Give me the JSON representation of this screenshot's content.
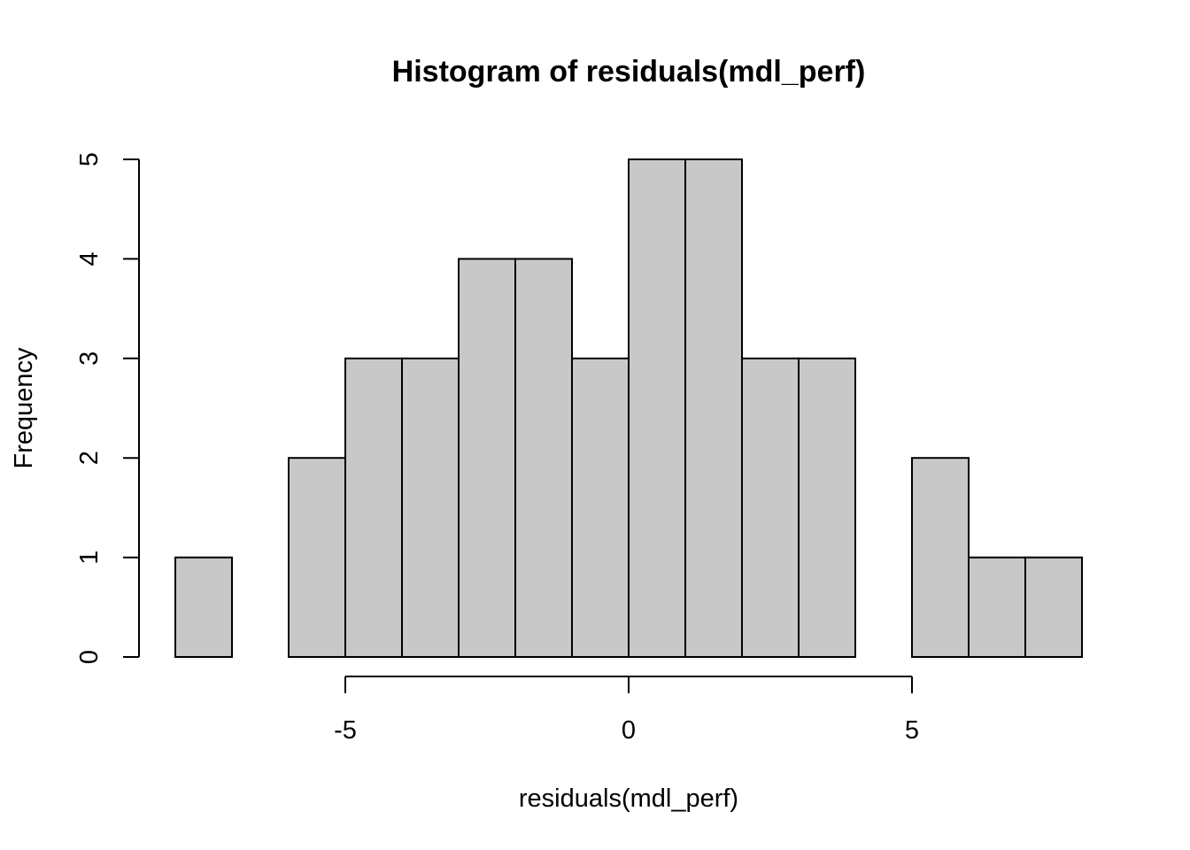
{
  "chart_data": {
    "type": "bar",
    "title": "Histogram of residuals(mdl_perf)",
    "xlabel": "residuals(mdl_perf)",
    "ylabel": "Frequency",
    "bin_edges": [
      -8,
      -7,
      -6,
      -5,
      -4,
      -3,
      -2,
      -1,
      0,
      1,
      2,
      3,
      4,
      5,
      6,
      7,
      8
    ],
    "counts": [
      1,
      0,
      2,
      3,
      3,
      4,
      4,
      3,
      5,
      5,
      3,
      3,
      0,
      2,
      1,
      1
    ],
    "x_ticks": [
      -5,
      0,
      5
    ],
    "x_tick_labels": [
      "-5",
      "0",
      "5"
    ],
    "y_ticks": [
      0,
      1,
      2,
      3,
      4,
      5
    ],
    "y_tick_labels": [
      "0",
      "1",
      "2",
      "3",
      "4",
      "5"
    ],
    "xlim": [
      -8,
      8
    ],
    "ylim": [
      0,
      5
    ],
    "grid": false,
    "bar_color": "#c8c8c8",
    "border_color": "#000000"
  }
}
